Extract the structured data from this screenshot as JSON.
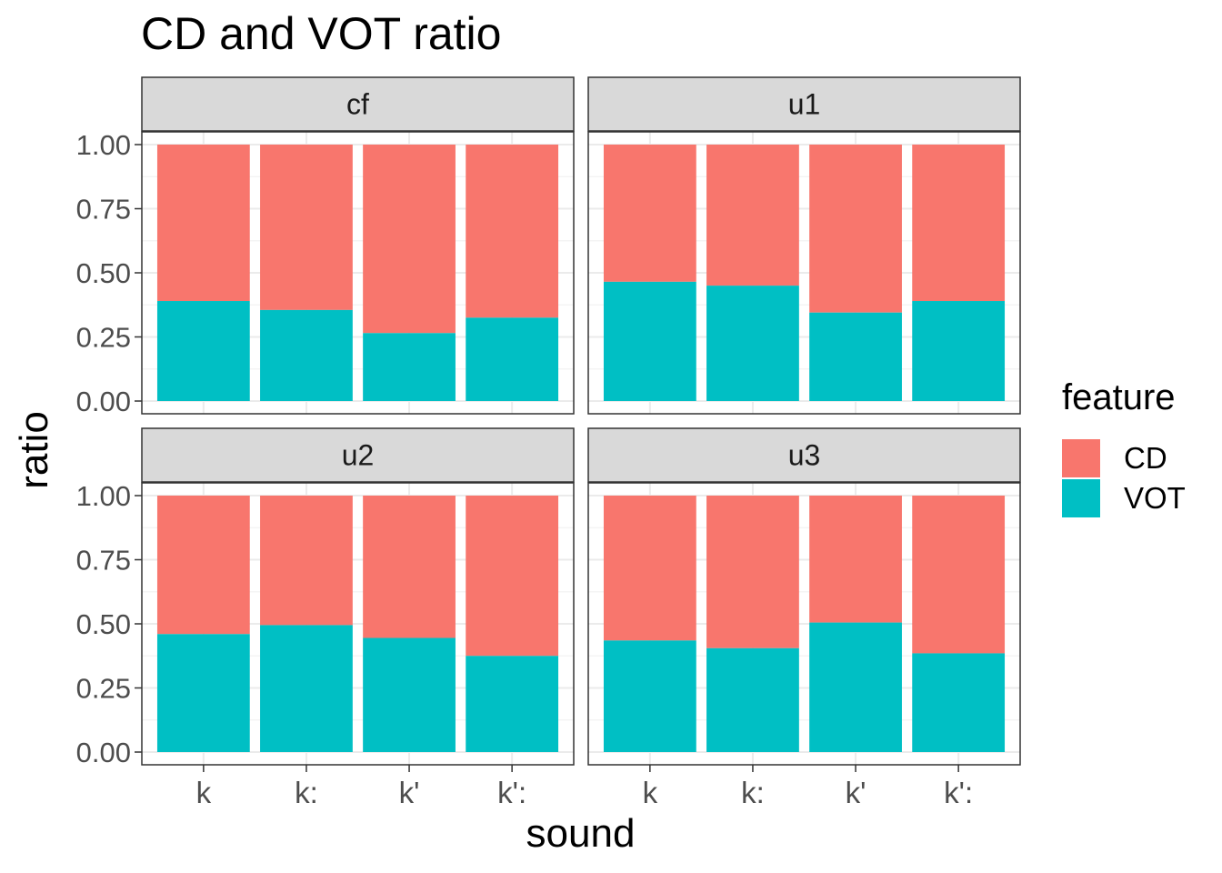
{
  "chart_data": {
    "type": "bar",
    "stacked": true,
    "title": "CD and VOT ratio",
    "xlabel": "sound",
    "ylabel": "ratio",
    "ylim": [
      0,
      1
    ],
    "y_ticks": [
      "0.00",
      "0.25",
      "0.50",
      "0.75",
      "1.00"
    ],
    "categories": [
      "k",
      "k:",
      "k'",
      "k':"
    ],
    "legend": {
      "title": "feature",
      "placement": "right",
      "entries": [
        {
          "name": "CD",
          "color": "#F8766D"
        },
        {
          "name": "VOT",
          "color": "#00BFC4"
        }
      ]
    },
    "panels": [
      {
        "name": "cf",
        "series": [
          {
            "name": "VOT",
            "values": [
              0.39,
              0.355,
              0.265,
              0.325
            ]
          },
          {
            "name": "CD",
            "values": [
              0.61,
              0.645,
              0.735,
              0.675
            ]
          }
        ]
      },
      {
        "name": "u1",
        "series": [
          {
            "name": "VOT",
            "values": [
              0.465,
              0.45,
              0.345,
              0.39
            ]
          },
          {
            "name": "CD",
            "values": [
              0.535,
              0.55,
              0.655,
              0.61
            ]
          }
        ]
      },
      {
        "name": "u2",
        "series": [
          {
            "name": "VOT",
            "values": [
              0.46,
              0.495,
              0.445,
              0.375
            ]
          },
          {
            "name": "CD",
            "values": [
              0.54,
              0.505,
              0.555,
              0.625
            ]
          }
        ]
      },
      {
        "name": "u3",
        "series": [
          {
            "name": "VOT",
            "values": [
              0.435,
              0.405,
              0.505,
              0.385
            ]
          },
          {
            "name": "CD",
            "values": [
              0.565,
              0.595,
              0.495,
              0.615
            ]
          }
        ]
      }
    ],
    "grid": true,
    "theme": "bw"
  }
}
